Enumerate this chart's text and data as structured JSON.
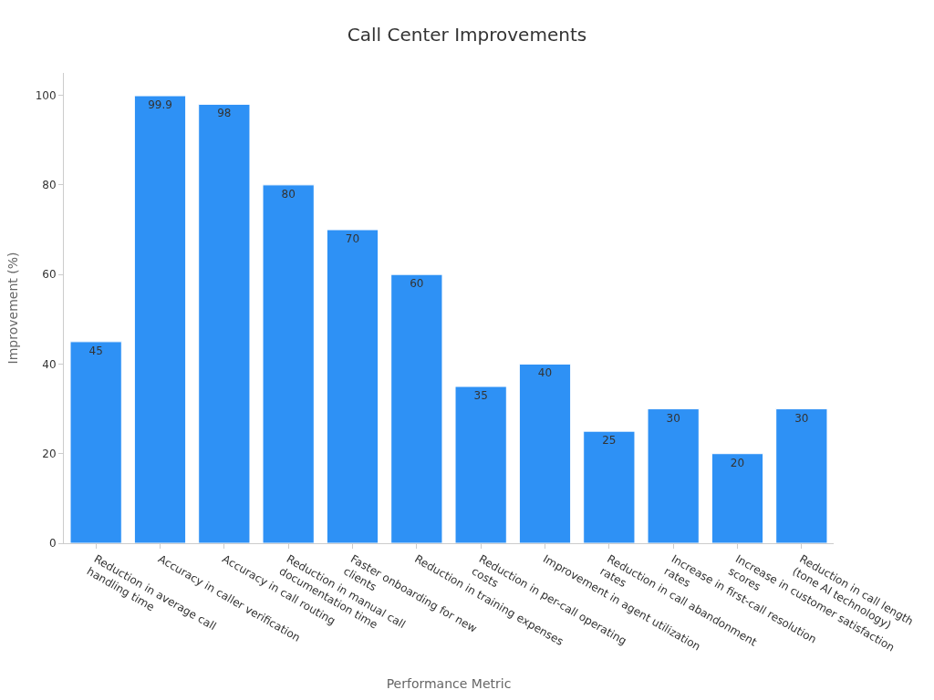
{
  "chart_data": {
    "type": "bar",
    "title": "Call Center Improvements",
    "xlabel": "Performance Metric",
    "ylabel": "Improvement (%)",
    "categories": [
      "Reduction in average call\nhandling time",
      "Accuracy in caller verification",
      "Accuracy in call routing",
      "Reduction in manual call\ndocumentation time",
      "Faster onboarding for new\nclients",
      "Reduction in training expenses",
      "Reduction in per-call operating\ncosts",
      "Improvement in agent utilization",
      "Reduction in call abandonment\nrates",
      "Increase in first-call resolution\nrates",
      "Increase in customer satisfaction\nscores",
      "Reduction in call length\n(tone AI technology)"
    ],
    "values": [
      45,
      99.9,
      98,
      80,
      70,
      60,
      35,
      40,
      25,
      30,
      20,
      30
    ],
    "color": "#2e91f5",
    "ylim": [
      0,
      105
    ],
    "yticks": [
      0,
      20,
      40,
      60,
      80,
      100
    ],
    "data_labels": true,
    "legend": false
  }
}
